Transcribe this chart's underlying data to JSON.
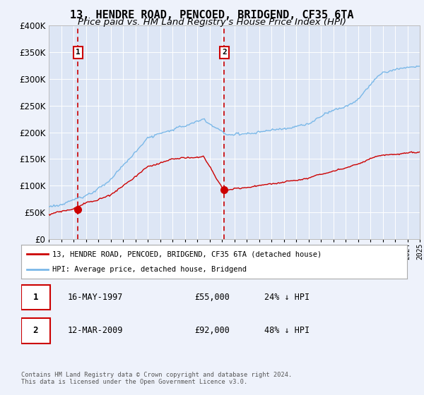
{
  "title": "13, HENDRE ROAD, PENCOED, BRIDGEND, CF35 6TA",
  "subtitle": "Price paid vs. HM Land Registry's House Price Index (HPI)",
  "title_fontsize": 11,
  "subtitle_fontsize": 9.5,
  "background_color": "#eef2fb",
  "plot_bg_color": "#dde6f5",
  "ylim": [
    0,
    400000
  ],
  "yticks": [
    0,
    50000,
    100000,
    150000,
    200000,
    250000,
    300000,
    350000,
    400000
  ],
  "year_start": 1995,
  "year_end": 2025,
  "hpi_color": "#7ab8e8",
  "price_color": "#cc0000",
  "dashed_color": "#cc0000",
  "transaction1_year": 1997.37,
  "transaction1_price": 55000,
  "transaction2_year": 2009.19,
  "transaction2_price": 92000,
  "legend_line1": "13, HENDRE ROAD, PENCOED, BRIDGEND, CF35 6TA (detached house)",
  "legend_line2": "HPI: Average price, detached house, Bridgend",
  "table_row1_num": "1",
  "table_row1_date": "16-MAY-1997",
  "table_row1_price": "£55,000",
  "table_row1_hpi": "24% ↓ HPI",
  "table_row2_num": "2",
  "table_row2_date": "12-MAR-2009",
  "table_row2_price": "£92,000",
  "table_row2_hpi": "48% ↓ HPI",
  "footer": "Contains HM Land Registry data © Crown copyright and database right 2024.\nThis data is licensed under the Open Government Licence v3.0."
}
